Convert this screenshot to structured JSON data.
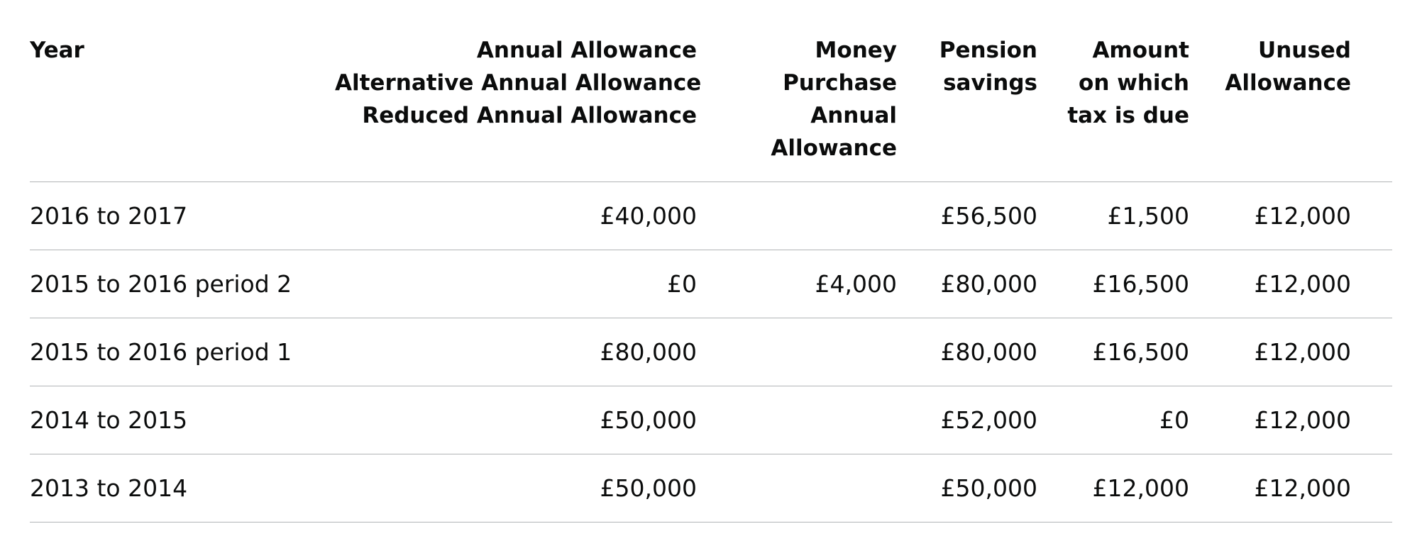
{
  "table": {
    "headers": {
      "year": [
        "Year"
      ],
      "annual_allowance": [
        "Annual Allowance",
        "Alternative Annual Allowance",
        "Reduced Annual Allowance"
      ],
      "mpaa": [
        "Money",
        "Purchase",
        "Annual",
        "Allowance"
      ],
      "pension_savings": [
        "Pension",
        "savings"
      ],
      "tax_due": [
        "Amount",
        "on which",
        "tax is due"
      ],
      "unused": [
        "Unused",
        "Allowance"
      ]
    },
    "rows": [
      {
        "year": "2016 to 2017",
        "annual_allowance": "£40,000",
        "mpaa": "",
        "pension_savings": "£56,500",
        "tax_due": "£1,500",
        "unused": "£12,000"
      },
      {
        "year": "2015 to 2016 period 2",
        "annual_allowance": "£0",
        "mpaa": "£4,000",
        "pension_savings": "£80,000",
        "tax_due": "£16,500",
        "unused": "£12,000"
      },
      {
        "year": "2015 to 2016 period 1",
        "annual_allowance": "£80,000",
        "mpaa": "",
        "pension_savings": "£80,000",
        "tax_due": "£16,500",
        "unused": "£12,000"
      },
      {
        "year": "2014 to 2015",
        "annual_allowance": "£50,000",
        "mpaa": "",
        "pension_savings": "£52,000",
        "tax_due": "£0",
        "unused": "£12,000"
      },
      {
        "year": "2013 to 2014",
        "annual_allowance": "£50,000",
        "mpaa": "",
        "pension_savings": "£50,000",
        "tax_due": "£12,000",
        "unused": "£12,000"
      }
    ]
  }
}
